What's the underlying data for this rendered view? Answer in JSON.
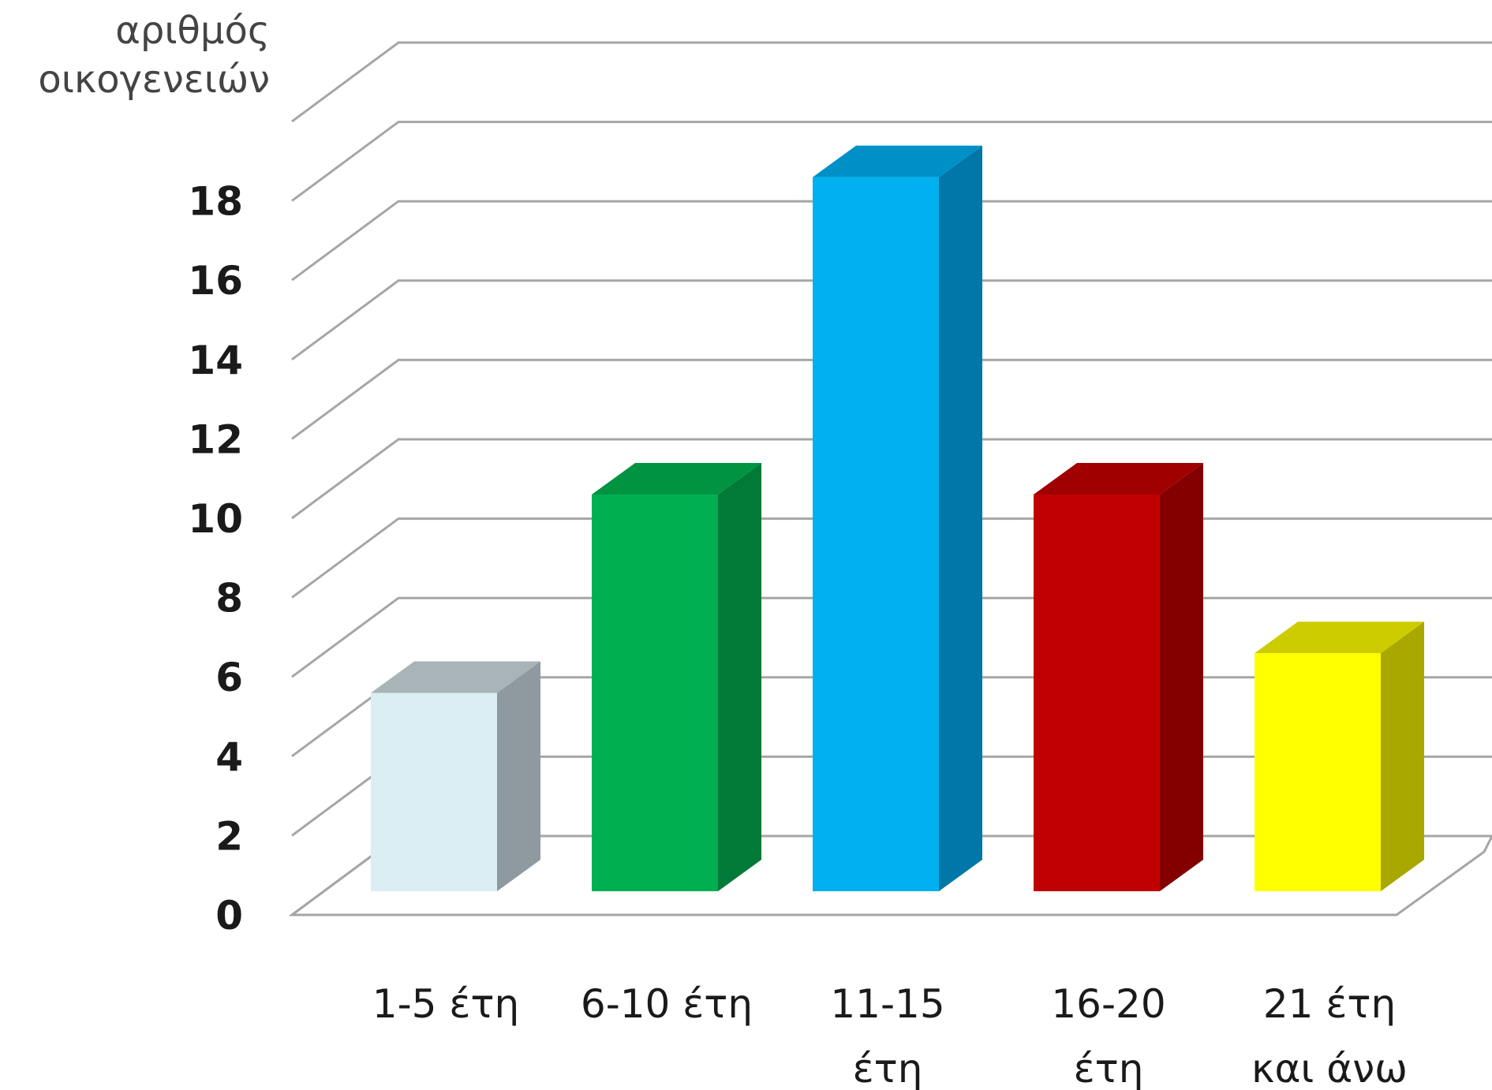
{
  "chart_data": {
    "type": "bar",
    "style": "3d-column",
    "ylabel_lines": [
      "αριθμός",
      "οικογενειών"
    ],
    "categories": [
      [
        "1-5 έτη"
      ],
      [
        "6-10 έτη"
      ],
      [
        "11-15",
        "έτη"
      ],
      [
        "16-20",
        "έτη"
      ],
      [
        "21 έτη",
        "και άνω"
      ]
    ],
    "values": [
      5,
      10,
      18,
      10,
      6
    ],
    "ylim": [
      0,
      20
    ],
    "yticks": [
      0,
      2,
      4,
      6,
      8,
      10,
      12,
      14,
      16,
      18
    ],
    "grid": true,
    "legend": "none",
    "colors": {
      "front": [
        "#DAEEF3",
        "#00B050",
        "#00B0F0",
        "#C00000",
        "#FFFF00"
      ],
      "side": [
        "#8E9AA0",
        "#007A36",
        "#0077A8",
        "#840000",
        "#A8A800"
      ],
      "top": [
        "#A9B4B8",
        "#009442",
        "#0090C8",
        "#A00000",
        "#CCCC00"
      ],
      "grid": "#A6A6A6",
      "tick_text": "#1A1A1A",
      "category_text": "#1A1A1A",
      "ylabel_text": "#444444"
    }
  }
}
